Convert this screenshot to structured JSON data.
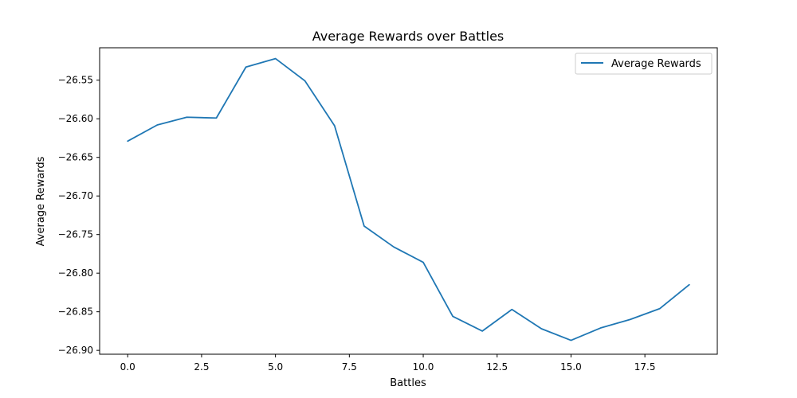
{
  "chart_data": {
    "type": "line",
    "title": "Average Rewards over Battles",
    "xlabel": "Battles",
    "ylabel": "Average Rewards",
    "xlim": [
      -0.95,
      19.95
    ],
    "ylim": [
      -26.905,
      -26.508
    ],
    "xticks": [
      0.0,
      2.5,
      5.0,
      7.5,
      10.0,
      12.5,
      15.0,
      17.5
    ],
    "xtick_labels": [
      "0.0",
      "2.5",
      "5.0",
      "7.5",
      "10.0",
      "12.5",
      "15.0",
      "17.5"
    ],
    "yticks": [
      -26.55,
      -26.6,
      -26.65,
      -26.7,
      -26.75,
      -26.8,
      -26.85,
      -26.9
    ],
    "ytick_labels": [
      "−26.55",
      "−26.60",
      "−26.65",
      "−26.70",
      "−26.75",
      "−26.80",
      "−26.85",
      "−26.90"
    ],
    "grid": false,
    "legend_position": "top-right",
    "series": [
      {
        "name": "Average Rewards",
        "color": "#1f77b4",
        "x": [
          0,
          1,
          2,
          3,
          4,
          5,
          6,
          7,
          8,
          9,
          10,
          11,
          12,
          13,
          14,
          15,
          16,
          17,
          18,
          19
        ],
        "values": [
          -26.629,
          -26.608,
          -26.598,
          -26.599,
          -26.533,
          -26.522,
          -26.551,
          -26.609,
          -26.739,
          -26.766,
          -26.786,
          -26.856,
          -26.875,
          -26.847,
          -26.872,
          -26.887,
          -26.871,
          -26.86,
          -26.846,
          -26.815
        ]
      }
    ]
  }
}
